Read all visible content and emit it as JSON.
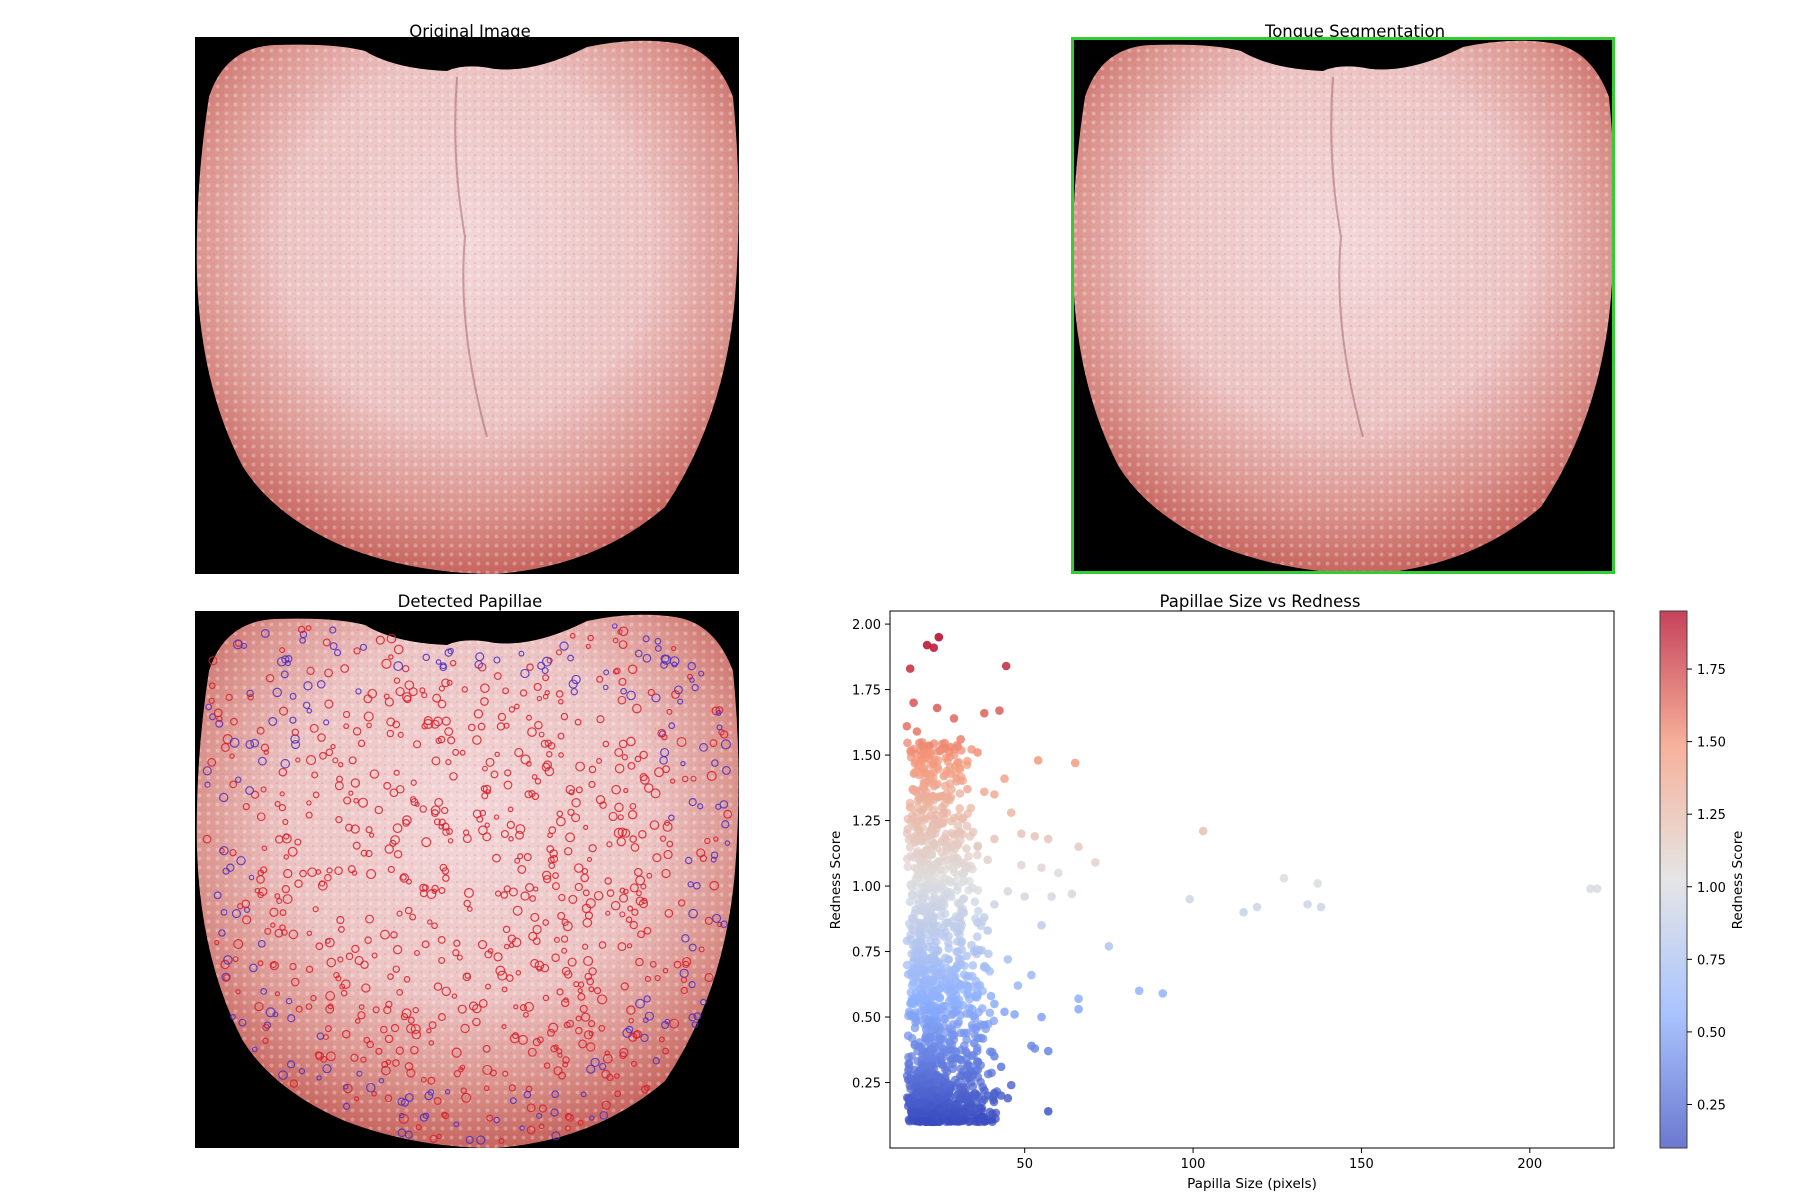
{
  "figure": {
    "panels": {
      "original": {
        "title": "Original Image"
      },
      "segmentation": {
        "title": "Tongue Segmentation"
      },
      "papillae": {
        "title": "Detected Papillae"
      },
      "scatter": {
        "title": "Papillae Size vs Redness"
      }
    },
    "colors": {
      "tongue_base": "#e8b4b0",
      "tongue_edge": "#d0706a",
      "background": "#000000",
      "segmentation_outline": "#33cc33",
      "papilla_red": "#d8202a",
      "papilla_blue": "#5030c0"
    }
  },
  "chart_data": {
    "type": "scatter",
    "title": "Papillae Size vs Redness",
    "xlabel": "Papilla Size (pixels)",
    "ylabel": "Redness Score",
    "xlim": [
      10,
      225
    ],
    "ylim": [
      0,
      2.05
    ],
    "xticks": [
      50,
      100,
      150,
      200
    ],
    "yticks": [
      0.25,
      0.5,
      0.75,
      1.0,
      1.25,
      1.5,
      1.75,
      2.0
    ],
    "ytick_labels": [
      "0.25",
      "0.50",
      "0.75",
      "1.00",
      "1.25",
      "1.50",
      "1.75",
      "2.00"
    ],
    "colormap": "coolwarm",
    "colorbar": {
      "label": "Redness Score",
      "range": [
        0.1,
        1.95
      ],
      "ticks": [
        0.25,
        0.5,
        0.75,
        1.0,
        1.25,
        1.5,
        1.75
      ],
      "tick_labels": [
        "0.25",
        "0.50",
        "0.75",
        "1.00",
        "1.25",
        "1.50",
        "1.75"
      ]
    },
    "grid": false,
    "points": [
      [
        24.5,
        1.95
      ],
      [
        21,
        1.92
      ],
      [
        23,
        1.91
      ],
      [
        16,
        1.83
      ],
      [
        44.5,
        1.84
      ],
      [
        17,
        1.7
      ],
      [
        24,
        1.68
      ],
      [
        29,
        1.64
      ],
      [
        38,
        1.66
      ],
      [
        42.5,
        1.67
      ],
      [
        15,
        1.61
      ],
      [
        18,
        1.59
      ],
      [
        31,
        1.56
      ],
      [
        28,
        1.53
      ],
      [
        36,
        1.51
      ],
      [
        54,
        1.48
      ],
      [
        65,
        1.47
      ],
      [
        20,
        1.45
      ],
      [
        26,
        1.42
      ],
      [
        44,
        1.41
      ],
      [
        33,
        1.37
      ],
      [
        38,
        1.36
      ],
      [
        41,
        1.35
      ],
      [
        46,
        1.28
      ],
      [
        16,
        1.3
      ],
      [
        22,
        1.27
      ],
      [
        49,
        1.2
      ],
      [
        53,
        1.19
      ],
      [
        57,
        1.18
      ],
      [
        41,
        1.18
      ],
      [
        66,
        1.15
      ],
      [
        103,
        1.21
      ],
      [
        36,
        1.15
      ],
      [
        39,
        1.1
      ],
      [
        71,
        1.09
      ],
      [
        49,
        1.08
      ],
      [
        55,
        1.07
      ],
      [
        60,
        1.05
      ],
      [
        127,
        1.03
      ],
      [
        137,
        1.01
      ],
      [
        45,
        0.98
      ],
      [
        50,
        0.96
      ],
      [
        58,
        0.96
      ],
      [
        64,
        0.97
      ],
      [
        99,
        0.95
      ],
      [
        115,
        0.9
      ],
      [
        119,
        0.92
      ],
      [
        134,
        0.93
      ],
      [
        138,
        0.92
      ],
      [
        218,
        0.99
      ],
      [
        220,
        0.99
      ],
      [
        41,
        0.93
      ],
      [
        38,
        0.88
      ],
      [
        36,
        0.86
      ],
      [
        39,
        0.83
      ],
      [
        55,
        0.85
      ],
      [
        75,
        0.77
      ],
      [
        35,
        0.75
      ],
      [
        31,
        0.7
      ],
      [
        38,
        0.69
      ],
      [
        52,
        0.66
      ],
      [
        48,
        0.62
      ],
      [
        84,
        0.6
      ],
      [
        91,
        0.59
      ],
      [
        66,
        0.57
      ],
      [
        66,
        0.53
      ],
      [
        41,
        0.55
      ],
      [
        44,
        0.52
      ],
      [
        47,
        0.51
      ],
      [
        55,
        0.5
      ],
      [
        38,
        0.47
      ],
      [
        37,
        0.42
      ],
      [
        52,
        0.39
      ],
      [
        53,
        0.38
      ],
      [
        57,
        0.37
      ],
      [
        41,
        0.35
      ],
      [
        36,
        0.33
      ],
      [
        43,
        0.31
      ],
      [
        41,
        0.21
      ],
      [
        39,
        0.2
      ],
      [
        43,
        0.2
      ],
      [
        45,
        0.19
      ],
      [
        34,
        0.16
      ],
      [
        57,
        0.14
      ],
      [
        31,
        0.14
      ],
      [
        38,
        0.22
      ],
      [
        33,
        0.28
      ],
      [
        46,
        0.24
      ],
      [
        35,
        0.4
      ],
      [
        40,
        0.58
      ],
      [
        33,
        0.62
      ],
      [
        45,
        0.72
      ],
      [
        30,
        1.2
      ],
      [
        27,
        1.33
      ],
      [
        32,
        1.05
      ]
    ]
  }
}
